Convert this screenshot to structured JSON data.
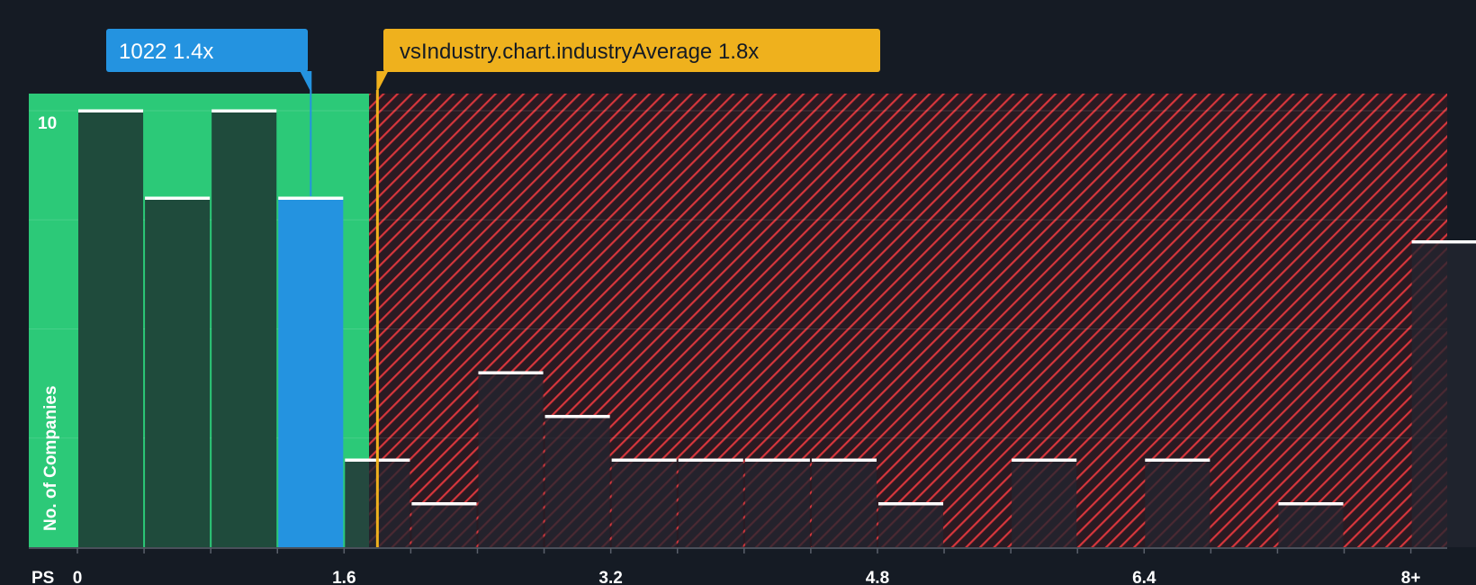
{
  "chart_data": {
    "type": "bar",
    "title": "",
    "xlabel": "PS",
    "ylabel": "No. of Companies",
    "x_tick_labels": [
      "0",
      "1.6",
      "3.2",
      "4.8",
      "6.4",
      "8+"
    ],
    "x_tick_values": [
      0,
      1.6,
      3.2,
      4.8,
      6.4,
      8.0
    ],
    "y_tick_labels": [
      "10"
    ],
    "ylim": [
      0,
      10.4
    ],
    "xlim": [
      -0.3,
      8.2
    ],
    "bin_width": 0.4,
    "bins": [
      {
        "x": 0.0,
        "count": 10
      },
      {
        "x": 0.4,
        "count": 8
      },
      {
        "x": 0.8,
        "count": 10
      },
      {
        "x": 1.2,
        "count": 8,
        "highlight": true
      },
      {
        "x": 1.6,
        "count": 2
      },
      {
        "x": 2.0,
        "count": 1
      },
      {
        "x": 2.4,
        "count": 4
      },
      {
        "x": 2.8,
        "count": 3
      },
      {
        "x": 3.2,
        "count": 2
      },
      {
        "x": 3.6,
        "count": 2
      },
      {
        "x": 4.0,
        "count": 2
      },
      {
        "x": 4.4,
        "count": 2
      },
      {
        "x": 4.8,
        "count": 1
      },
      {
        "x": 5.2,
        "count": 0
      },
      {
        "x": 5.6,
        "count": 2
      },
      {
        "x": 6.0,
        "count": 0
      },
      {
        "x": 6.4,
        "count": 2
      },
      {
        "x": 6.8,
        "count": 0
      },
      {
        "x": 7.2,
        "count": 1
      },
      {
        "x": 7.6,
        "count": 0
      },
      {
        "x": 8.0,
        "count": 7
      }
    ],
    "company": {
      "label": "1022 1.4x",
      "value": 1.4
    },
    "industry_average": {
      "label": "vsIndustry.chart.industryAverage 1.8x",
      "value": 1.8
    },
    "fair_zone_max": 1.75
  },
  "colors": {
    "background": "#151b24",
    "green_zone": "#2cc978",
    "green_bar": "#1f4b3c",
    "red_zone_hatch": "#e0393e",
    "dark_bar": "#222530",
    "company_bar": "#2493e0",
    "industry_line": "#efb11d",
    "bar_top": "#ffffff"
  }
}
